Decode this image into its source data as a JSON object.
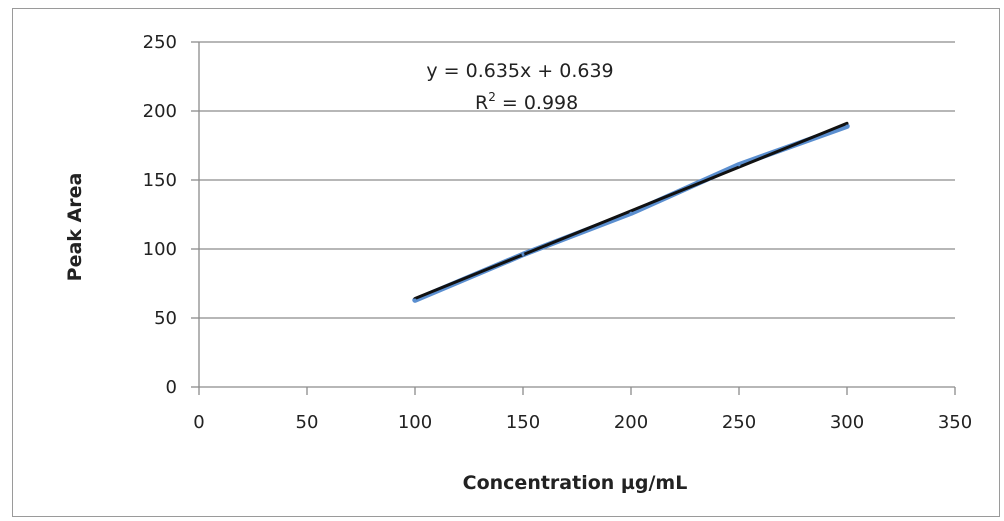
{
  "chart_data": {
    "type": "line",
    "title": "",
    "xlabel": "Concentration µg/mL",
    "ylabel": "Peak Area",
    "xlim": [
      0,
      350
    ],
    "ylim": [
      0,
      250
    ],
    "x_ticks": [
      "0",
      "50",
      "100",
      "150",
      "200",
      "250",
      "300",
      "350"
    ],
    "y_ticks": [
      "0",
      "50",
      "100",
      "150",
      "200",
      "250"
    ],
    "grid": "horizontal",
    "series": [
      {
        "kind": "data",
        "x": [
          100,
          150,
          200,
          250,
          300
        ],
        "y": [
          63,
          96,
          126,
          161,
          189
        ],
        "color": "#5b8fd0"
      },
      {
        "kind": "trendline",
        "x": [
          100,
          300
        ],
        "y": [
          64.1,
          191.1
        ],
        "color": "#111111"
      }
    ],
    "annotations": {
      "equation": "y = 0.635x + 0.639",
      "r2_prefix": "R",
      "r2_exp": "2",
      "r2_value": " = 0.998"
    }
  }
}
